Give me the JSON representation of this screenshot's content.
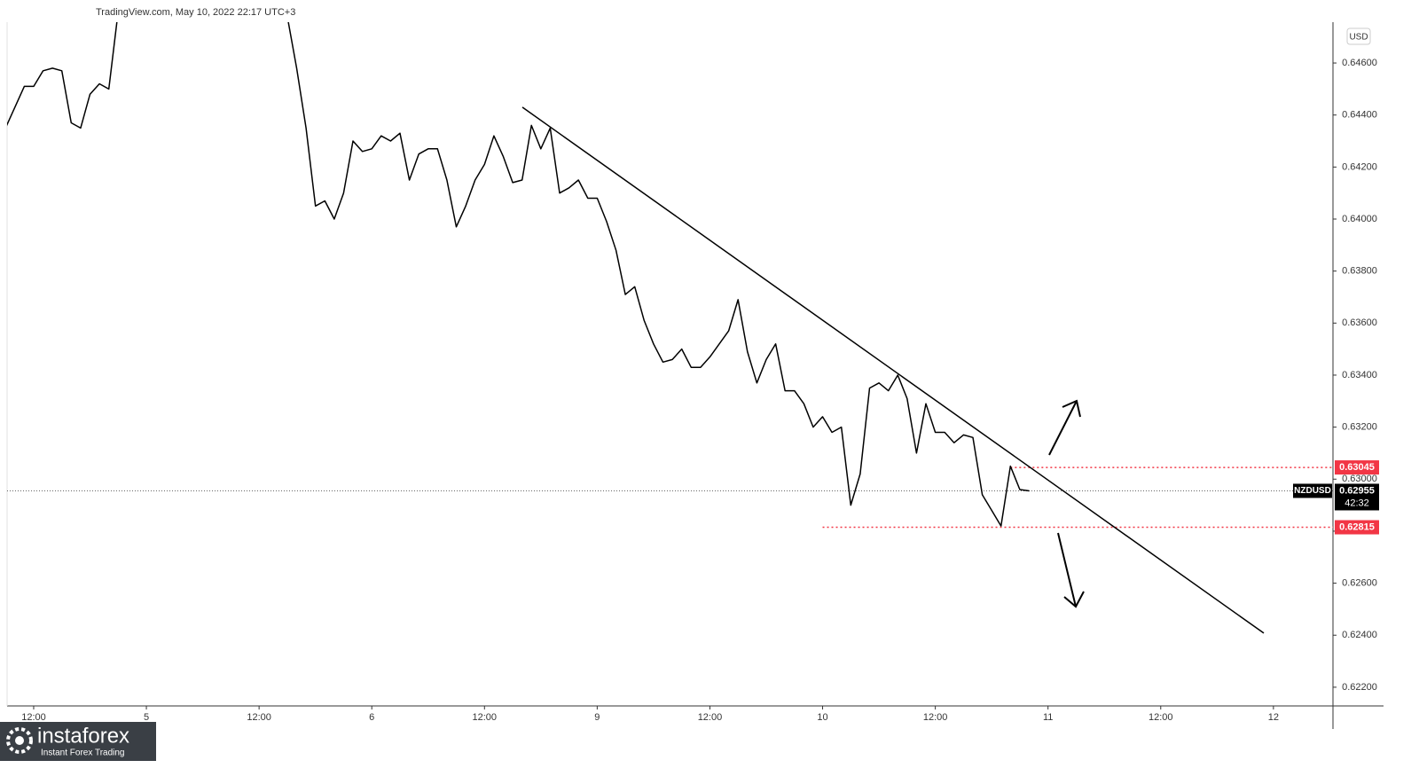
{
  "header": "TradingView.com, May 10, 2022 22:17 UTC+3",
  "currency": "USD",
  "logo": {
    "name": "instaforex",
    "tagline": "Instant Forex Trading"
  },
  "chart_data": {
    "type": "line",
    "x": [
      9,
      10,
      11,
      12,
      13,
      14,
      15,
      16,
      17,
      18,
      19,
      20,
      21,
      22,
      23,
      24,
      25,
      26,
      27,
      28,
      29,
      30,
      31,
      32,
      33,
      34,
      35,
      36,
      37,
      38,
      39,
      40,
      41,
      42,
      43,
      44,
      45,
      46,
      47,
      48,
      49,
      50,
      51,
      52,
      53,
      54,
      55,
      56,
      57,
      58,
      59,
      60,
      61,
      62,
      63,
      64,
      65,
      66,
      67,
      68,
      69,
      70,
      71,
      72,
      73,
      74,
      75,
      76,
      77,
      78,
      79,
      80,
      81,
      82,
      83,
      84,
      85,
      86,
      87,
      88,
      89,
      90,
      91,
      92,
      93,
      94,
      95,
      96,
      97,
      98,
      99,
      100,
      101,
      102,
      103,
      104,
      105,
      106,
      107,
      108,
      109,
      110,
      111,
      112,
      113,
      114,
      115,
      116,
      117,
      118
    ],
    "series": [
      {
        "name": "NZDUSD",
        "color": "#000000",
        "values": [
          0.6435,
          0.6443,
          0.6451,
          0.6451,
          0.6457,
          0.6458,
          0.6457,
          0.6437,
          0.6435,
          0.6448,
          0.6452,
          0.645,
          0.648,
          null,
          null,
          null,
          null,
          null,
          null,
          null,
          null,
          null,
          null,
          null,
          null,
          null,
          null,
          null,
          null,
          null,
          0.6478,
          0.6458,
          0.6435,
          0.6405,
          0.6407,
          0.64,
          0.641,
          0.643,
          0.6426,
          0.6427,
          0.6432,
          0.643,
          0.6433,
          0.6415,
          0.6425,
          0.6427,
          0.6427,
          0.6415,
          0.6397,
          0.6405,
          0.6415,
          0.6421,
          0.6432,
          0.6424,
          0.6414,
          0.6415,
          0.6436,
          0.6427,
          0.6435,
          0.641,
          0.6412,
          0.6415,
          0.6408,
          0.6408,
          0.6399,
          0.6388,
          0.6371,
          0.6374,
          0.6361,
          0.6352,
          0.6345,
          0.6346,
          0.635,
          0.6343,
          0.6343,
          0.6347,
          0.6352,
          0.6357,
          0.6369,
          0.6349,
          0.6337,
          0.6346,
          0.6352,
          0.6334,
          0.6334,
          0.6329,
          0.632,
          0.6324,
          0.6318,
          0.632,
          0.629,
          0.6302,
          0.6335,
          0.6337,
          0.6334,
          0.634,
          0.6331,
          0.631,
          0.6329,
          0.6318,
          0.6318,
          0.6314,
          0.6317,
          0.6316,
          0.6294,
          0.6288,
          0.6282,
          0.6305,
          0.6296,
          0.62955
        ]
      }
    ],
    "xlim": [
      9.17,
      150.34
    ],
    "xticks": [
      {
        "value": 12,
        "label": "12:00"
      },
      {
        "value": 24,
        "label": "5"
      },
      {
        "value": 36,
        "label": "12:00"
      },
      {
        "value": 48,
        "label": "6"
      },
      {
        "value": 60,
        "label": "12:00"
      },
      {
        "value": 72,
        "label": "9"
      },
      {
        "value": 84,
        "label": "12:00"
      },
      {
        "value": 96,
        "label": "10"
      },
      {
        "value": 108,
        "label": "12:00"
      },
      {
        "value": 120,
        "label": "11"
      },
      {
        "value": 132,
        "label": "12:00"
      },
      {
        "value": 144,
        "label": "12"
      }
    ],
    "ylim": [
      0.62128,
      0.64757
    ],
    "yticks": [
      {
        "value": 0.622,
        "label": "0.62200"
      },
      {
        "value": 0.624,
        "label": "0.62400"
      },
      {
        "value": 0.626,
        "label": "0.62600"
      },
      {
        "value": 0.628,
        "label": "0.62800"
      },
      {
        "value": 0.63,
        "label": "0.63000"
      },
      {
        "value": 0.632,
        "label": "0.63200"
      },
      {
        "value": 0.634,
        "label": "0.63400"
      },
      {
        "value": 0.636,
        "label": "0.63600"
      },
      {
        "value": 0.638,
        "label": "0.63800"
      },
      {
        "value": 0.64,
        "label": "0.64000"
      },
      {
        "value": 0.642,
        "label": "0.64200"
      },
      {
        "value": 0.644,
        "label": "0.64400"
      },
      {
        "value": 0.646,
        "label": "0.64600"
      }
    ],
    "grid": false,
    "trendline": {
      "x": [
        64.03,
        142.97
      ],
      "values": [
        0.6443,
        0.62408
      ],
      "color": "#000000"
    },
    "levels": [
      {
        "value": 0.63045,
        "start": 116,
        "color": "#f23645"
      },
      {
        "value": 0.62815,
        "start": 96,
        "color": "#f23645"
      }
    ],
    "last": {
      "value": 0.62955,
      "countdown": "42:32"
    }
  }
}
